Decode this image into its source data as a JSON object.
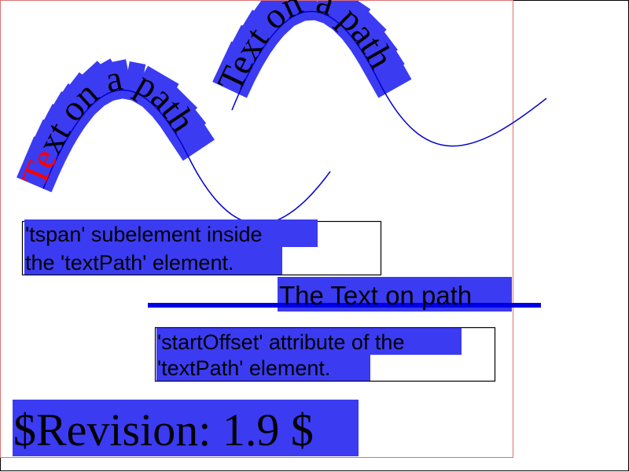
{
  "colors": {
    "highlight": "#3b3bf2",
    "path_stroke": "#0000cc",
    "line_blue": "#0000e6",
    "red_text": "#ff0000",
    "text": "#000000",
    "red_border": "#e07070",
    "box_border": "#000000"
  },
  "upper_path": {
    "text": "Text on a path"
  },
  "lower_path": {
    "text_red": "Te",
    "text_rest": "xt on a path"
  },
  "tspan_note": {
    "line1": "'tspan' subelement inside",
    "line2": "the 'textPath' element."
  },
  "straight_path": {
    "text": "The Text on path"
  },
  "offset_note": {
    "line1": "'startOffset' attribute of the",
    "line2": "'textPath' element."
  },
  "revision": {
    "text": "$Revision: 1.9 $"
  }
}
